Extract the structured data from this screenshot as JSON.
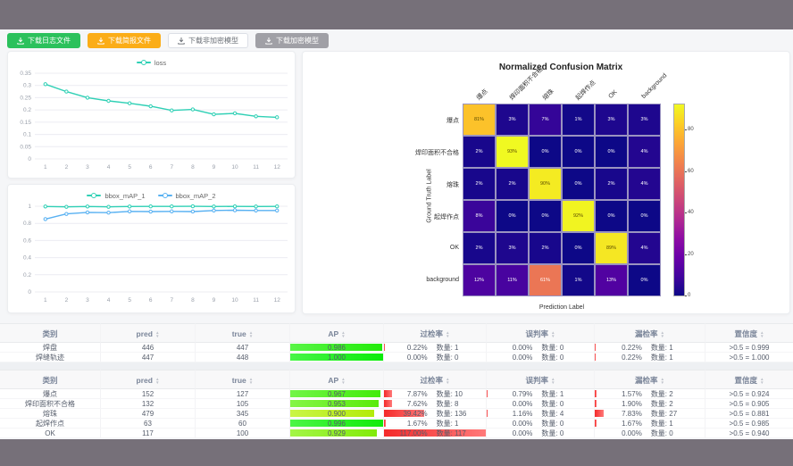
{
  "accent_colors": {
    "teal": "#2fd0b5",
    "blue": "#58b1f2",
    "green_btn": "#2bc15c",
    "orange_btn": "#fbad17",
    "gray_btn": "#a0a0a6",
    "bar_red": "#f42a2a"
  },
  "buttons": [
    {
      "label": "下载日志文件",
      "style": "green"
    },
    {
      "label": "下载简报文件",
      "style": "orange"
    },
    {
      "label": "下载非加密模型",
      "style": "white"
    },
    {
      "label": "下载加密模型",
      "style": "gray"
    }
  ],
  "chart_data": [
    {
      "type": "line",
      "title": "",
      "legend": [
        "loss"
      ],
      "legend_position": "top-center",
      "x": [
        1,
        2,
        3,
        4,
        5,
        6,
        7,
        8,
        9,
        10,
        11,
        12
      ],
      "series": [
        {
          "name": "loss",
          "color": "#2fd0b5",
          "values": [
            0.305,
            0.275,
            0.25,
            0.237,
            0.227,
            0.215,
            0.198,
            0.202,
            0.182,
            0.186,
            0.174,
            0.17
          ]
        }
      ],
      "ylim": [
        0,
        0.35
      ],
      "yticks": [
        0,
        0.05,
        0.1,
        0.15,
        0.2,
        0.25,
        0.3,
        0.35
      ],
      "grid": true
    },
    {
      "type": "line",
      "title": "",
      "legend": [
        "bbox_mAP_1",
        "bbox_mAP_2"
      ],
      "legend_position": "top-center",
      "x": [
        1,
        2,
        3,
        4,
        5,
        6,
        7,
        8,
        9,
        10,
        11,
        12
      ],
      "series": [
        {
          "name": "bbox_mAP_1",
          "color": "#2fd0b5",
          "values": [
            0.997,
            0.993,
            0.997,
            0.993,
            0.997,
            0.998,
            0.998,
            0.999,
            0.997,
            0.998,
            0.997,
            0.998
          ]
        },
        {
          "name": "bbox_mAP_2",
          "color": "#58b1f2",
          "values": [
            0.85,
            0.91,
            0.928,
            0.925,
            0.94,
            0.937,
            0.94,
            0.938,
            0.95,
            0.953,
            0.95,
            0.95
          ]
        }
      ],
      "ylim": [
        0,
        1
      ],
      "yticks": [
        0,
        0.2,
        0.4,
        0.6,
        0.8,
        1
      ],
      "grid": true
    },
    {
      "type": "heatmap",
      "title": "Normalized Confusion Matrix",
      "xlabel": "Prediction Label",
      "ylabel": "Ground Truth Label",
      "labels": [
        "爆点",
        "焊印面积不合格",
        "熔珠",
        "起焊作点",
        "OK",
        "background"
      ],
      "matrix_percent": [
        [
          81,
          3,
          7,
          1,
          3,
          3
        ],
        [
          2,
          93,
          0,
          0,
          0,
          4
        ],
        [
          2,
          2,
          90,
          0,
          2,
          4
        ],
        [
          8,
          0,
          0,
          92,
          0,
          0
        ],
        [
          2,
          3,
          2,
          0,
          89,
          4
        ],
        [
          12,
          11,
          61,
          1,
          13,
          0
        ]
      ],
      "colormap": "plasma",
      "vmax": 93,
      "colorbar_ticks": [
        0,
        20,
        40,
        60,
        80
      ]
    }
  ],
  "tables": {
    "count_label": "数量:",
    "headers": [
      {
        "label": "类别",
        "sortable": false
      },
      {
        "label": "pred",
        "sortable": true
      },
      {
        "label": "true",
        "sortable": true
      },
      {
        "label": "AP",
        "sortable": true
      },
      {
        "label": "过检率",
        "sortable": true
      },
      {
        "label": "误判率",
        "sortable": true
      },
      {
        "label": "漏检率",
        "sortable": true
      },
      {
        "label": "置信度",
        "sortable": true
      }
    ],
    "table1": {
      "rows": [
        {
          "class": "焊盘",
          "pred": 446,
          "true": 447,
          "ap": "0.986",
          "overdetect": {
            "pct": "0.22%",
            "count": 1
          },
          "misjudge": {
            "pct": "0.00%",
            "count": 0
          },
          "miss": {
            "pct": "0.22%",
            "count": 1
          },
          "confidence": ">0.5 = 0.999"
        },
        {
          "class": "焊缝轨迹",
          "pred": 447,
          "true": 448,
          "ap": "1.000",
          "overdetect": {
            "pct": "0.00%",
            "count": 0
          },
          "misjudge": {
            "pct": "0.00%",
            "count": 0
          },
          "miss": {
            "pct": "0.22%",
            "count": 1
          },
          "confidence": ">0.5 = 1.000"
        }
      ]
    },
    "table2": {
      "rows": [
        {
          "class": "爆点",
          "pred": 152,
          "true": 127,
          "ap": "0.967",
          "overdetect": {
            "pct": "7.87%",
            "count": 10
          },
          "misjudge": {
            "pct": "0.79%",
            "count": 1
          },
          "miss": {
            "pct": "1.57%",
            "count": 2
          },
          "confidence": ">0.5 = 0.924"
        },
        {
          "class": "焊印面积不合格",
          "pred": 132,
          "true": 105,
          "ap": "0.953",
          "overdetect": {
            "pct": "7.62%",
            "count": 8
          },
          "misjudge": {
            "pct": "0.00%",
            "count": 0
          },
          "miss": {
            "pct": "1.90%",
            "count": 2
          },
          "confidence": ">0.5 = 0.905"
        },
        {
          "class": "熔珠",
          "pred": 479,
          "true": 345,
          "ap": "0.900",
          "overdetect": {
            "pct": "39.42%",
            "count": 136
          },
          "misjudge": {
            "pct": "1.16%",
            "count": 4
          },
          "miss": {
            "pct": "7.83%",
            "count": 27
          },
          "confidence": ">0.5 = 0.881"
        },
        {
          "class": "起焊作点",
          "pred": 63,
          "true": 60,
          "ap": "0.996",
          "overdetect": {
            "pct": "1.67%",
            "count": 1
          },
          "misjudge": {
            "pct": "0.00%",
            "count": 0
          },
          "miss": {
            "pct": "1.67%",
            "count": 1
          },
          "confidence": ">0.5 = 0.985"
        },
        {
          "class": "OK",
          "pred": 117,
          "true": 100,
          "ap": "0.929",
          "overdetect": {
            "pct": "117.00%",
            "count": 117
          },
          "misjudge": {
            "pct": "0.00%",
            "count": 0
          },
          "miss": {
            "pct": "0.00%",
            "count": 0
          },
          "confidence": ">0.5 = 0.940"
        }
      ]
    }
  }
}
